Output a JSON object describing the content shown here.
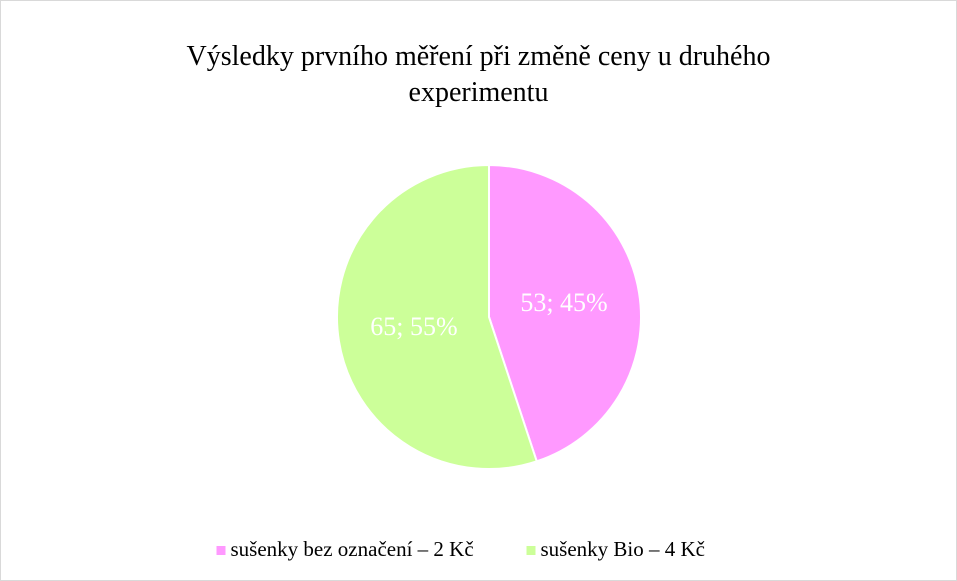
{
  "chart_data": {
    "type": "pie",
    "title": "Výsledky prvního měření při změně ceny u druhého experimentu",
    "categories": [
      "sušenky bez označení – 2 Kč",
      "sušenky Bio – 4 Kč"
    ],
    "values": [
      53,
      65
    ],
    "value_labels": [
      "53; 45%",
      "65; 55%"
    ],
    "colors": [
      "#ff99ff",
      "#ccff99"
    ],
    "legend": "bottom"
  }
}
